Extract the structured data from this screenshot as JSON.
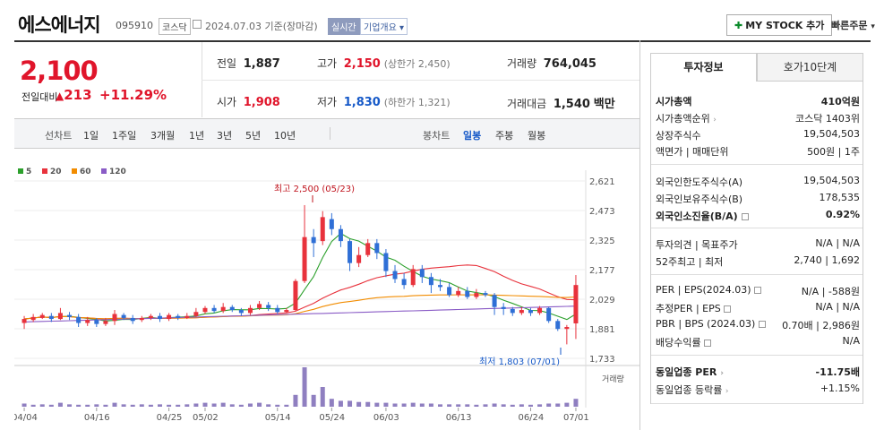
{
  "header": {
    "title": "에스에너지",
    "code": "095910",
    "market": "코스닥",
    "date": "2024.07.03 기준(장마감)",
    "realtime": "실시간",
    "corp_info": "기업개요",
    "mystock": "MY STOCK 추가",
    "quick_order": "빠른주문"
  },
  "price": {
    "current": "2,100",
    "prev_label": "전일대비",
    "change": "213",
    "change_pct": "+11.29%"
  },
  "quote": {
    "prev_close_label": "전일",
    "prev_close": "1,887",
    "high_label": "고가",
    "high": "2,150",
    "upper_limit": "(상한가 2,450)",
    "volume_label": "거래량",
    "volume": "764,045",
    "open_label": "시가",
    "open": "1,908",
    "low_label": "저가",
    "low": "1,830",
    "lower_limit": "(하한가 1,321)",
    "amount_label": "거래대금",
    "amount": "1,540",
    "amount_unit": "백만"
  },
  "tabs": {
    "line_chart": "선차트",
    "day1": "1일",
    "week1": "1주일",
    "month3": "3개월",
    "year1": "1년",
    "year3": "3년",
    "year5": "5년",
    "year10": "10년",
    "candle_chart": "봉차트",
    "daily": "일봉",
    "weekly": "주봉",
    "monthly": "월봉"
  },
  "chart_data": {
    "type": "candlestick",
    "legend": [
      "5",
      "20",
      "60",
      "120"
    ],
    "legend_colors": [
      "#2ca02c",
      "#e8323c",
      "#f28c00",
      "#8a5cc6"
    ],
    "y_ticks": [
      "2,621",
      "2,473",
      "2,325",
      "2,177",
      "2,029",
      "1,881",
      "1,733"
    ],
    "ylim": [
      1733,
      2621
    ],
    "x_ticks": [
      "04/04",
      "04/16",
      "04/25",
      "05/02",
      "05/14",
      "05/24",
      "06/03",
      "06/13",
      "06/24",
      "07/01"
    ],
    "high_annotation": "최고 2,500 (05/23)",
    "low_annotation": "최저 1,803 (07/01)",
    "volume_label": "거래량",
    "candles": [
      [
        1910,
        1930,
        1880,
        1945
      ],
      [
        1925,
        1940,
        1915,
        1955
      ],
      [
        1935,
        1950,
        1930,
        1960
      ],
      [
        1945,
        1930,
        1915,
        1960
      ],
      [
        1930,
        1960,
        1925,
        1985
      ],
      [
        1950,
        1940,
        1925,
        1965
      ],
      [
        1940,
        1910,
        1890,
        1955
      ],
      [
        1910,
        1925,
        1895,
        1940
      ],
      [
        1925,
        1905,
        1890,
        1935
      ],
      [
        1905,
        1920,
        1895,
        1935
      ],
      [
        1920,
        1955,
        1900,
        1975
      ],
      [
        1950,
        1935,
        1925,
        1960
      ],
      [
        1935,
        1920,
        1905,
        1950
      ],
      [
        1925,
        1935,
        1915,
        1945
      ],
      [
        1935,
        1945,
        1925,
        1955
      ],
      [
        1945,
        1930,
        1915,
        1960
      ],
      [
        1930,
        1950,
        1920,
        1960
      ],
      [
        1945,
        1935,
        1925,
        1955
      ],
      [
        1935,
        1945,
        1930,
        1960
      ],
      [
        1945,
        1965,
        1940,
        1985
      ],
      [
        1965,
        1985,
        1955,
        1995
      ],
      [
        1985,
        1970,
        1960,
        2000
      ],
      [
        1970,
        1990,
        1960,
        2010
      ],
      [
        1990,
        1975,
        1965,
        2000
      ],
      [
        1975,
        1960,
        1945,
        1985
      ],
      [
        1960,
        1985,
        1950,
        2000
      ],
      [
        1985,
        2005,
        1975,
        2020
      ],
      [
        2000,
        1985,
        1970,
        2015
      ],
      [
        1985,
        1965,
        1955,
        2000
      ],
      [
        1965,
        1975,
        1960,
        1985
      ],
      [
        1975,
        2120,
        1970,
        2130
      ],
      [
        2120,
        2340,
        2110,
        2500
      ],
      [
        2340,
        2310,
        2240,
        2380
      ],
      [
        2320,
        2440,
        2300,
        2470
      ],
      [
        2430,
        2380,
        2350,
        2460
      ],
      [
        2380,
        2320,
        2290,
        2400
      ],
      [
        2320,
        2210,
        2170,
        2330
      ],
      [
        2210,
        2250,
        2190,
        2290
      ],
      [
        2250,
        2310,
        2240,
        2330
      ],
      [
        2310,
        2260,
        2230,
        2330
      ],
      [
        2260,
        2170,
        2140,
        2280
      ],
      [
        2170,
        2130,
        2110,
        2200
      ],
      [
        2130,
        2100,
        2080,
        2160
      ],
      [
        2100,
        2180,
        2090,
        2200
      ],
      [
        2180,
        2140,
        2110,
        2200
      ],
      [
        2140,
        2100,
        2060,
        2160
      ],
      [
        2100,
        2090,
        2070,
        2130
      ],
      [
        2090,
        2050,
        2040,
        2110
      ],
      [
        2050,
        2070,
        2040,
        2090
      ],
      [
        2070,
        2040,
        2030,
        2090
      ],
      [
        2040,
        2060,
        2030,
        2080
      ],
      [
        2060,
        2050,
        2040,
        2070
      ],
      [
        2050,
        1990,
        1950,
        2060
      ],
      [
        1990,
        1980,
        1950,
        2010
      ],
      [
        1980,
        1960,
        1945,
        1990
      ],
      [
        1960,
        1975,
        1950,
        1990
      ],
      [
        1975,
        1960,
        1945,
        1985
      ],
      [
        1960,
        1985,
        1950,
        1995
      ],
      [
        1985,
        1920,
        1910,
        1990
      ],
      [
        1920,
        1880,
        1870,
        1930
      ],
      [
        1880,
        1890,
        1803,
        1900
      ],
      [
        1908,
        2100,
        1830,
        2150
      ]
    ],
    "volume_relative": [
      0.08,
      0.05,
      0.06,
      0.05,
      0.1,
      0.06,
      0.05,
      0.05,
      0.06,
      0.05,
      0.1,
      0.06,
      0.05,
      0.06,
      0.05,
      0.06,
      0.05,
      0.05,
      0.06,
      0.08,
      0.1,
      0.08,
      0.1,
      0.06,
      0.05,
      0.08,
      0.1,
      0.06,
      0.05,
      0.05,
      0.3,
      1.0,
      0.3,
      0.5,
      0.2,
      0.15,
      0.15,
      0.12,
      0.12,
      0.1,
      0.1,
      0.08,
      0.08,
      0.1,
      0.08,
      0.08,
      0.06,
      0.06,
      0.06,
      0.06,
      0.05,
      0.06,
      0.08,
      0.06,
      0.05,
      0.06,
      0.05,
      0.06,
      0.08,
      0.08,
      0.1,
      0.2
    ]
  },
  "panel": {
    "tab_invest": "투자정보",
    "tab_hoga": "호가10단계",
    "market_cap_label": "시가총액",
    "market_cap": "410억원",
    "cap_rank_label": "시가총액순위",
    "cap_rank": "코스닥 1403위",
    "listed_label": "상장주식수",
    "listed": "19,504,503",
    "face_label": "액면가 | 매매단위",
    "face": "500원 | 1주",
    "foreign_limit_label": "외국인한도주식수(A)",
    "foreign_limit": "19,504,503",
    "foreign_own_label": "외국인보유주식수(B)",
    "foreign_own": "178,535",
    "foreign_ratio_label": "외국인소진율(B/A)",
    "foreign_ratio": "0.92%",
    "opinion_label": "투자의견 | 목표주가",
    "opinion": "N/A | N/A",
    "w52_label": "52주최고 | 최저",
    "w52": "2,740 | 1,692",
    "per_label": "PER | EPS(2024.03)",
    "per": "N/A | -588원",
    "est_per_label": "추정PER | EPS",
    "est_per": "N/A | N/A",
    "pbr_label": "PBR | BPS (2024.03)",
    "pbr": "0.70배 | 2,986원",
    "div_label": "배당수익률",
    "div": "N/A",
    "sector_per_label": "동일업종 PER",
    "sector_per": "-11.75배",
    "sector_chg_label": "동일업종 등락률",
    "sector_chg": "+1.15%"
  }
}
